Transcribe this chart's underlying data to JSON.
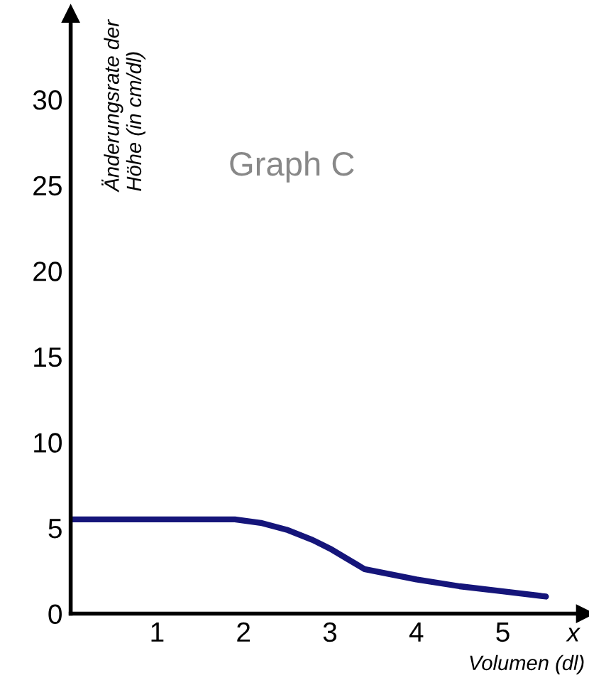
{
  "chart_data": {
    "type": "line",
    "title": "Graph C",
    "xlabel": "Volumen (dl)",
    "ylabel": "Änderungsrate der\nHöhe (in cm/dl)",
    "annotations": [
      "x"
    ],
    "x": [
      0,
      0.5,
      1,
      1.5,
      1.9,
      2.2,
      2.5,
      2.8,
      3,
      3.2,
      3.4,
      3.7,
      4,
      4.5,
      5,
      5.5
    ],
    "series": [
      {
        "color": "#15157a",
        "values": [
          5.5,
          5.5,
          5.5,
          5.5,
          5.5,
          5.3,
          4.9,
          4.3,
          3.8,
          3.2,
          2.6,
          2.3,
          2.0,
          1.6,
          1.3,
          1.0
        ]
      }
    ],
    "xlim": [
      0,
      5.95
    ],
    "ylim": [
      0,
      35
    ],
    "xticks": [
      1,
      2,
      3,
      4,
      5
    ],
    "yticks": [
      0,
      5,
      10,
      15,
      20,
      25,
      30
    ],
    "grid": false,
    "legend": false,
    "marker": "none",
    "line_style": "solid"
  }
}
